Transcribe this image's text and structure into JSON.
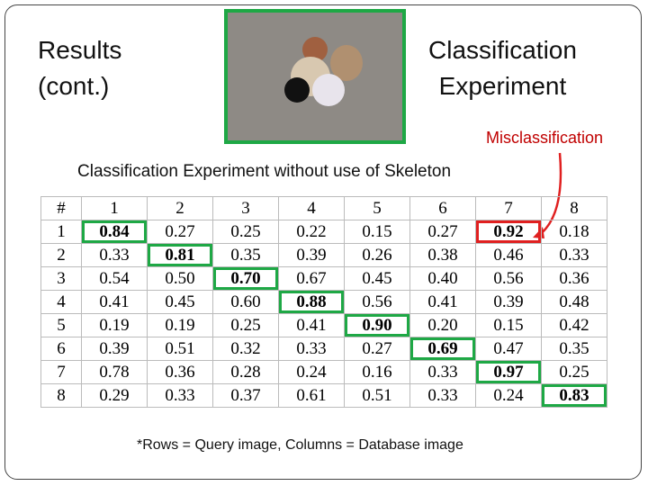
{
  "header": {
    "left_title": [
      "Results",
      "(cont.)"
    ],
    "right_title": [
      "Classification",
      "Experiment"
    ]
  },
  "annotation": "Misclassification",
  "table": {
    "caption": "Classification Experiment without use of Skeleton",
    "header": [
      "#",
      "1",
      "2",
      "3",
      "4",
      "5",
      "6",
      "7",
      "8"
    ],
    "rows": [
      [
        "1",
        "0.84",
        "0.27",
        "0.25",
        "0.22",
        "0.15",
        "0.27",
        "0.92",
        "0.18"
      ],
      [
        "2",
        "0.33",
        "0.81",
        "0.35",
        "0.39",
        "0.26",
        "0.38",
        "0.46",
        "0.33"
      ],
      [
        "3",
        "0.54",
        "0.50",
        "0.70",
        "0.67",
        "0.45",
        "0.40",
        "0.56",
        "0.36"
      ],
      [
        "4",
        "0.41",
        "0.45",
        "0.60",
        "0.88",
        "0.56",
        "0.41",
        "0.39",
        "0.48"
      ],
      [
        "5",
        "0.19",
        "0.19",
        "0.25",
        "0.41",
        "0.90",
        "0.20",
        "0.15",
        "0.42"
      ],
      [
        "6",
        "0.39",
        "0.51",
        "0.32",
        "0.33",
        "0.27",
        "0.69",
        "0.47",
        "0.35"
      ],
      [
        "7",
        "0.78",
        "0.36",
        "0.28",
        "0.24",
        "0.16",
        "0.33",
        "0.97",
        "0.25"
      ],
      [
        "8",
        "0.29",
        "0.33",
        "0.37",
        "0.61",
        "0.51",
        "0.33",
        "0.24",
        "0.83"
      ]
    ]
  },
  "footnote": "*Rows = Query image, Columns = Database image"
}
